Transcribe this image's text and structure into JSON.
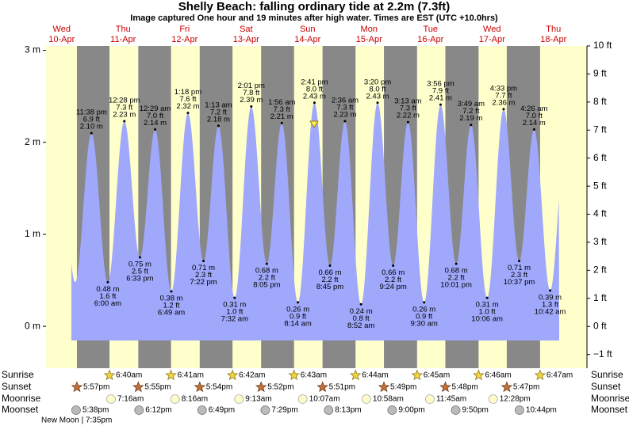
{
  "chart_data": {
    "type": "tide",
    "title": "Shelly Beach: falling  ordinary tide at 2.2m (7.3ft)",
    "subtitle": "Image captured One hour and 19 minutes after high water. Times are EST (UTC +10.0hrs)",
    "days": [
      {
        "weekday": "Wed",
        "date": "10-Apr"
      },
      {
        "weekday": "Thu",
        "date": "11-Apr"
      },
      {
        "weekday": "Fri",
        "date": "12-Apr"
      },
      {
        "weekday": "Sat",
        "date": "13-Apr"
      },
      {
        "weekday": "Sun",
        "date": "14-Apr"
      },
      {
        "weekday": "Mon",
        "date": "15-Apr"
      },
      {
        "weekday": "Tue",
        "date": "16-Apr"
      },
      {
        "weekday": "Wed",
        "date": "17-Apr"
      },
      {
        "weekday": "Thu",
        "date": "18-Apr"
      }
    ],
    "tides": [
      [
        {
          "time": "11:38 pm",
          "value": 2.1,
          "value_label": "2.10 m",
          "ft_label": "6.9 ft"
        }
      ],
      [
        {
          "time": "6:00 am",
          "value": 0.48,
          "value_label": "0.48 m",
          "ft_label": "1.6 ft"
        },
        {
          "time": "12:28 pm",
          "value": 2.23,
          "value_label": "2.23 m",
          "ft_label": "7.3 ft"
        },
        {
          "time": "6:33 pm",
          "value": 0.75,
          "value_label": "0.75 m",
          "ft_label": "2.5 ft"
        }
      ],
      [
        {
          "time": "12:29 am",
          "value": 2.14,
          "value_label": "2.14 m",
          "ft_label": "7.0 ft"
        },
        {
          "time": "6:49 am",
          "value": 0.38,
          "value_label": "0.38 m",
          "ft_label": "1.2 ft"
        },
        {
          "time": "1:18 pm",
          "value": 2.32,
          "value_label": "2.32 m",
          "ft_label": "7.6 ft"
        },
        {
          "time": "7:22 pm",
          "value": 0.71,
          "value_label": "0.71 m",
          "ft_label": "2.3 ft"
        }
      ],
      [
        {
          "time": "1:13 am",
          "value": 2.18,
          "value_label": "2.18 m",
          "ft_label": "7.2 ft"
        },
        {
          "time": "7:32 am",
          "value": 0.31,
          "value_label": "0.31 m",
          "ft_label": "1.0 ft"
        },
        {
          "time": "2:01 pm",
          "value": 2.39,
          "value_label": "2.39 m",
          "ft_label": "7.8 ft"
        },
        {
          "time": "8:05 pm",
          "value": 0.68,
          "value_label": "0.68 m",
          "ft_label": "2.2 ft"
        }
      ],
      [
        {
          "time": "1:56 am",
          "value": 2.21,
          "value_label": "2.21 m",
          "ft_label": "7.3 ft"
        },
        {
          "time": "8:14 am",
          "value": 0.26,
          "value_label": "0.26 m",
          "ft_label": "0.9 ft"
        },
        {
          "time": "2:41 pm",
          "value": 2.43,
          "value_label": "2.43 m",
          "ft_label": "8.0 ft"
        },
        {
          "time": "8:45 pm",
          "value": 0.66,
          "value_label": "0.66 m",
          "ft_label": "2.2 ft"
        }
      ],
      [
        {
          "time": "2:36 am",
          "value": 2.23,
          "value_label": "2.23 m",
          "ft_label": "7.3 ft"
        },
        {
          "time": "8:52 am",
          "value": 0.24,
          "value_label": "0.24 m",
          "ft_label": "0.8 ft"
        },
        {
          "time": "3:20 pm",
          "value": 2.43,
          "value_label": "2.43 m",
          "ft_label": "8.0 ft"
        },
        {
          "time": "9:24 pm",
          "value": 0.66,
          "value_label": "0.66 m",
          "ft_label": "2.2 ft"
        }
      ],
      [
        {
          "time": "3:13 am",
          "value": 2.22,
          "value_label": "2.22 m",
          "ft_label": "7.3 ft"
        },
        {
          "time": "9:30 am",
          "value": 0.26,
          "value_label": "0.26 m",
          "ft_label": "0.9 ft"
        },
        {
          "time": "3:56 pm",
          "value": 2.41,
          "value_label": "2.41 m",
          "ft_label": "7.9 ft"
        },
        {
          "time": "10:01 pm",
          "value": 0.68,
          "value_label": "0.68 m",
          "ft_label": "2.2 ft"
        }
      ],
      [
        {
          "time": "3:49 am",
          "value": 2.19,
          "value_label": "2.19 m",
          "ft_label": "7.2 ft"
        },
        {
          "time": "10:06 am",
          "value": 0.31,
          "value_label": "0.31 m",
          "ft_label": "1.0 ft"
        },
        {
          "time": "4:33 pm",
          "value": 2.36,
          "value_label": "2.36 m",
          "ft_label": "7.7 ft"
        },
        {
          "time": "10:37 pm",
          "value": 0.71,
          "value_label": "0.71 m",
          "ft_label": "2.3 ft"
        }
      ],
      [
        {
          "time": "4:26 am",
          "value": 2.14,
          "value_label": "2.14 m",
          "ft_label": "7.0 ft"
        },
        {
          "time": "10:42 am",
          "value": 0.39,
          "value_label": "0.39 m",
          "ft_label": "1.3 ft"
        }
      ]
    ],
    "ylim": [
      -0.455,
      3.048
    ],
    "yticks": [
      {
        "value": 0,
        "label": "0 m"
      },
      {
        "value": 1,
        "label": "1 m"
      },
      {
        "value": 2,
        "label": "2 m"
      },
      {
        "value": 3,
        "label": "3 m"
      }
    ],
    "y2lim": [
      -1.49,
      10
    ],
    "y2ticks": [
      {
        "value": -1,
        "label": "−1 ft"
      },
      {
        "value": 0,
        "label": "0 ft"
      },
      {
        "value": 1,
        "label": "1 ft"
      },
      {
        "value": 2,
        "label": "2 ft"
      },
      {
        "value": 3,
        "label": "3 ft"
      },
      {
        "value": 4,
        "label": "4 ft"
      },
      {
        "value": 5,
        "label": "5 ft"
      },
      {
        "value": 6,
        "label": "6 ft"
      },
      {
        "value": 7,
        "label": "7 ft"
      },
      {
        "value": 8,
        "label": "8 ft"
      },
      {
        "value": 9,
        "label": "9 ft"
      },
      {
        "value": 10,
        "label": "10 ft"
      }
    ],
    "rows": [
      {
        "name": "Sunrise",
        "times": [
          null,
          "6:40am",
          "6:41am",
          "6:42am",
          "6:43am",
          "6:44am",
          "6:45am",
          "6:46am",
          "6:47am"
        ]
      },
      {
        "name": "Sunset",
        "times": [
          "5:57pm",
          "5:55pm",
          "5:54pm",
          "5:52pm",
          "5:51pm",
          "5:49pm",
          "5:48pm",
          "5:47pm",
          null
        ]
      },
      {
        "name": "Moonrise",
        "times": [
          null,
          "7:16am",
          "8:16am",
          "9:13am",
          "10:07am",
          "10:58am",
          "11:45am",
          "12:28pm",
          null
        ]
      },
      {
        "name": "Moonset",
        "times": [
          "5:38pm",
          "6:12pm",
          "6:49pm",
          "7:29pm",
          "8:13pm",
          "9:00pm",
          "9:50pm",
          "10:44pm",
          null
        ]
      }
    ],
    "moon_phase": "New Moon | 7:35pm"
  }
}
